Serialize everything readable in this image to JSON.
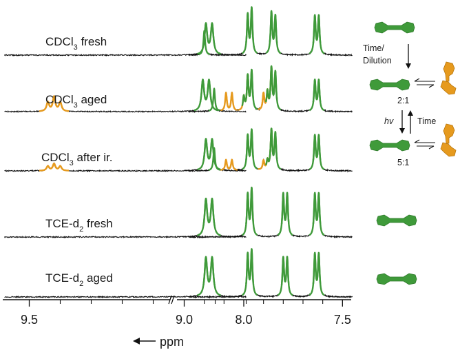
{
  "chart_data": {
    "type": "line",
    "xlabel": "ppm",
    "x_direction": "decreasing",
    "axis_break_between": [
      8.3,
      8.75
    ],
    "x_ticks": [
      "9.5",
      "9.0",
      "8.0",
      "7.5"
    ],
    "colors": {
      "dimer": "#3f9a3a",
      "isomer": "#e69a1e",
      "baseline": "#111111"
    },
    "series": [
      {
        "name": "CDCl3 fresh",
        "label_main": "CDCl",
        "label_sub": "3",
        "label_rest": " fresh",
        "peaks": [
          {
            "ppm": 8.93,
            "height": 0.4,
            "kind": "dimer"
          },
          {
            "ppm": 8.91,
            "height": 0.4,
            "kind": "dimer"
          },
          {
            "ppm": 8.2,
            "height": 0.32,
            "kind": "dimer"
          },
          {
            "ppm": 7.98,
            "height": 0.52,
            "kind": "dimer"
          },
          {
            "ppm": 7.96,
            "height": 0.6,
            "kind": "dimer"
          },
          {
            "ppm": 7.86,
            "height": 0.55,
            "kind": "dimer"
          },
          {
            "ppm": 7.84,
            "height": 0.5,
            "kind": "dimer"
          },
          {
            "ppm": 7.64,
            "height": 0.5,
            "kind": "dimer"
          },
          {
            "ppm": 7.62,
            "height": 0.5,
            "kind": "dimer"
          }
        ]
      },
      {
        "name": "CDCl3 aged",
        "label_main": "CDCl",
        "label_sub": "3",
        "label_rest": " aged",
        "peaks": [
          {
            "ppm": 9.44,
            "height": 0.12,
            "kind": "isomer"
          },
          {
            "ppm": 9.42,
            "height": 0.19,
            "kind": "isomer"
          },
          {
            "ppm": 9.4,
            "height": 0.12,
            "kind": "isomer"
          },
          {
            "ppm": 8.94,
            "height": 0.4,
            "kind": "dimer"
          },
          {
            "ppm": 8.92,
            "height": 0.4,
            "kind": "dimer"
          },
          {
            "ppm": 8.15,
            "height": 0.3,
            "kind": "dimer"
          },
          {
            "ppm": 8.09,
            "height": 0.24,
            "kind": "isomer"
          },
          {
            "ppm": 8.06,
            "height": 0.24,
            "kind": "isomer"
          },
          {
            "ppm": 8.0,
            "height": 0.18,
            "kind": "isomer"
          },
          {
            "ppm": 7.98,
            "height": 0.45,
            "kind": "dimer"
          },
          {
            "ppm": 7.96,
            "height": 0.52,
            "kind": "dimer"
          },
          {
            "ppm": 7.9,
            "height": 0.22,
            "kind": "isomer"
          },
          {
            "ppm": 7.88,
            "height": 0.24,
            "kind": "isomer"
          },
          {
            "ppm": 7.86,
            "height": 0.55,
            "kind": "dimer"
          },
          {
            "ppm": 7.84,
            "height": 0.5,
            "kind": "dimer"
          },
          {
            "ppm": 7.64,
            "height": 0.4,
            "kind": "dimer"
          },
          {
            "ppm": 7.62,
            "height": 0.4,
            "kind": "dimer"
          }
        ]
      },
      {
        "name": "CDCl3 after ir.",
        "label_main": "CDCl",
        "label_sub": "3",
        "label_rest": " after ir.",
        "peaks": [
          {
            "ppm": 9.44,
            "height": 0.06,
            "kind": "isomer"
          },
          {
            "ppm": 9.42,
            "height": 0.09,
            "kind": "isomer"
          },
          {
            "ppm": 9.4,
            "height": 0.06,
            "kind": "isomer"
          },
          {
            "ppm": 8.93,
            "height": 0.4,
            "kind": "dimer"
          },
          {
            "ppm": 8.91,
            "height": 0.4,
            "kind": "dimer"
          },
          {
            "ppm": 8.15,
            "height": 0.3,
            "kind": "dimer"
          },
          {
            "ppm": 8.09,
            "height": 0.14,
            "kind": "isomer"
          },
          {
            "ppm": 8.06,
            "height": 0.14,
            "kind": "isomer"
          },
          {
            "ppm": 7.98,
            "height": 0.45,
            "kind": "dimer"
          },
          {
            "ppm": 7.96,
            "height": 0.52,
            "kind": "dimer"
          },
          {
            "ppm": 7.9,
            "height": 0.12,
            "kind": "isomer"
          },
          {
            "ppm": 7.88,
            "height": 0.12,
            "kind": "isomer"
          },
          {
            "ppm": 7.86,
            "height": 0.52,
            "kind": "dimer"
          },
          {
            "ppm": 7.84,
            "height": 0.48,
            "kind": "dimer"
          },
          {
            "ppm": 7.64,
            "height": 0.45,
            "kind": "dimer"
          },
          {
            "ppm": 7.62,
            "height": 0.45,
            "kind": "dimer"
          }
        ]
      },
      {
        "name": "TCE-d2 fresh",
        "label_main": "TCE-d",
        "label_sub": "2",
        "label_rest": " fresh",
        "peaks": [
          {
            "ppm": 8.93,
            "height": 0.48,
            "kind": "dimer"
          },
          {
            "ppm": 8.91,
            "height": 0.48,
            "kind": "dimer"
          },
          {
            "ppm": 7.98,
            "height": 0.55,
            "kind": "dimer"
          },
          {
            "ppm": 7.96,
            "height": 0.62,
            "kind": "dimer"
          },
          {
            "ppm": 7.8,
            "height": 0.55,
            "kind": "dimer"
          },
          {
            "ppm": 7.78,
            "height": 0.55,
            "kind": "dimer"
          },
          {
            "ppm": 7.64,
            "height": 0.55,
            "kind": "dimer"
          },
          {
            "ppm": 7.62,
            "height": 0.55,
            "kind": "dimer"
          }
        ]
      },
      {
        "name": "TCE-d2 aged",
        "label_main": "TCE-d",
        "label_sub": "2",
        "label_rest": " aged",
        "peaks": [
          {
            "ppm": 8.93,
            "height": 0.5,
            "kind": "dimer"
          },
          {
            "ppm": 8.91,
            "height": 0.5,
            "kind": "dimer"
          },
          {
            "ppm": 7.98,
            "height": 0.55,
            "kind": "dimer"
          },
          {
            "ppm": 7.96,
            "height": 0.6,
            "kind": "dimer"
          },
          {
            "ppm": 7.8,
            "height": 0.5,
            "kind": "dimer"
          },
          {
            "ppm": 7.78,
            "height": 0.5,
            "kind": "dimer"
          },
          {
            "ppm": 7.64,
            "height": 0.55,
            "kind": "dimer"
          },
          {
            "ppm": 7.62,
            "height": 0.55,
            "kind": "dimer"
          }
        ]
      }
    ]
  },
  "scheme": {
    "time_dilution_line1": "Time/",
    "time_dilution_line2": "Dilution",
    "ratio_aged": "2:1",
    "hv_label": "hv",
    "time_label": "Time",
    "ratio_irradiated": "5:1"
  }
}
